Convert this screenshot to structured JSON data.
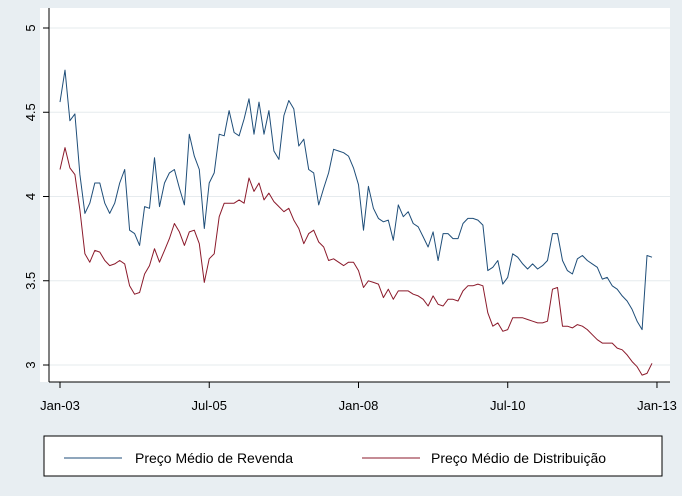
{
  "chart_data": {
    "type": "line",
    "x_start": "2003-01",
    "x_interval": "month",
    "xlim": [
      "2003-01",
      "2012-12"
    ],
    "ylim": [
      3,
      5
    ],
    "x_ticks": [
      {
        "label": "Jan-03",
        "at": "2003-01"
      },
      {
        "label": "Jul-05",
        "at": "2005-07"
      },
      {
        "label": "Jan-08",
        "at": "2008-01"
      },
      {
        "label": "Jul-10",
        "at": "2010-07"
      },
      {
        "label": "Jan-13",
        "at": "2013-01"
      }
    ],
    "y_ticks": [
      {
        "label": "3",
        "value": 3
      },
      {
        "label": "3.5",
        "value": 3.5
      },
      {
        "label": "4",
        "value": 4
      },
      {
        "label": "4.5",
        "value": 4.5
      },
      {
        "label": "5",
        "value": 5
      }
    ],
    "grid": true,
    "legend_position": "bottom",
    "series": [
      {
        "name": "Preço Médio de Revenda",
        "color": "#1f4e79",
        "values": [
          4.56,
          4.75,
          4.45,
          4.49,
          4.13,
          3.9,
          3.96,
          4.08,
          4.08,
          3.96,
          3.9,
          3.96,
          4.08,
          4.16,
          3.8,
          3.78,
          3.71,
          3.94,
          3.93,
          4.23,
          3.94,
          4.08,
          4.14,
          4.16,
          4.05,
          3.95,
          4.37,
          4.24,
          4.16,
          3.81,
          4.08,
          4.14,
          4.37,
          4.36,
          4.51,
          4.38,
          4.36,
          4.46,
          4.58,
          4.37,
          4.56,
          4.37,
          4.51,
          4.27,
          4.22,
          4.48,
          4.57,
          4.52,
          4.3,
          4.34,
          4.16,
          4.14,
          3.95,
          4.05,
          4.14,
          4.28,
          4.27,
          4.26,
          4.24,
          4.17,
          4.07,
          3.8,
          4.06,
          3.93,
          3.87,
          3.85,
          3.86,
          3.74,
          3.95,
          3.88,
          3.91,
          3.84,
          3.82,
          3.76,
          3.7,
          3.79,
          3.62,
          3.78,
          3.78,
          3.75,
          3.75,
          3.84,
          3.87,
          3.87,
          3.86,
          3.83,
          3.56,
          3.58,
          3.62,
          3.48,
          3.52,
          3.66,
          3.64,
          3.6,
          3.57,
          3.6,
          3.57,
          3.59,
          3.62,
          3.78,
          3.78,
          3.62,
          3.56,
          3.54,
          3.63,
          3.65,
          3.62,
          3.6,
          3.58,
          3.51,
          3.52,
          3.47,
          3.45,
          3.41,
          3.38,
          3.33,
          3.26,
          3.21,
          3.65,
          3.64
        ]
      },
      {
        "name": "Preço Médio de Distribuição",
        "color": "#8b1a2b",
        "values": [
          4.16,
          4.29,
          4.17,
          4.13,
          3.92,
          3.66,
          3.61,
          3.68,
          3.67,
          3.62,
          3.59,
          3.6,
          3.62,
          3.6,
          3.47,
          3.42,
          3.43,
          3.54,
          3.59,
          3.69,
          3.61,
          3.68,
          3.75,
          3.84,
          3.79,
          3.71,
          3.79,
          3.8,
          3.72,
          3.49,
          3.63,
          3.66,
          3.88,
          3.96,
          3.96,
          3.96,
          3.98,
          3.96,
          4.11,
          4.03,
          4.08,
          3.98,
          4.02,
          3.97,
          3.94,
          3.91,
          3.93,
          3.86,
          3.81,
          3.72,
          3.78,
          3.8,
          3.73,
          3.7,
          3.62,
          3.63,
          3.61,
          3.59,
          3.61,
          3.61,
          3.56,
          3.46,
          3.5,
          3.49,
          3.48,
          3.4,
          3.45,
          3.39,
          3.44,
          3.44,
          3.44,
          3.42,
          3.41,
          3.39,
          3.35,
          3.41,
          3.36,
          3.35,
          3.39,
          3.39,
          3.38,
          3.44,
          3.47,
          3.47,
          3.48,
          3.47,
          3.31,
          3.23,
          3.25,
          3.2,
          3.21,
          3.28,
          3.28,
          3.28,
          3.27,
          3.26,
          3.25,
          3.25,
          3.26,
          3.45,
          3.46,
          3.23,
          3.23,
          3.22,
          3.24,
          3.23,
          3.21,
          3.18,
          3.15,
          3.13,
          3.13,
          3.13,
          3.1,
          3.09,
          3.06,
          3.02,
          2.99,
          2.94,
          2.95,
          3.01
        ]
      }
    ]
  }
}
